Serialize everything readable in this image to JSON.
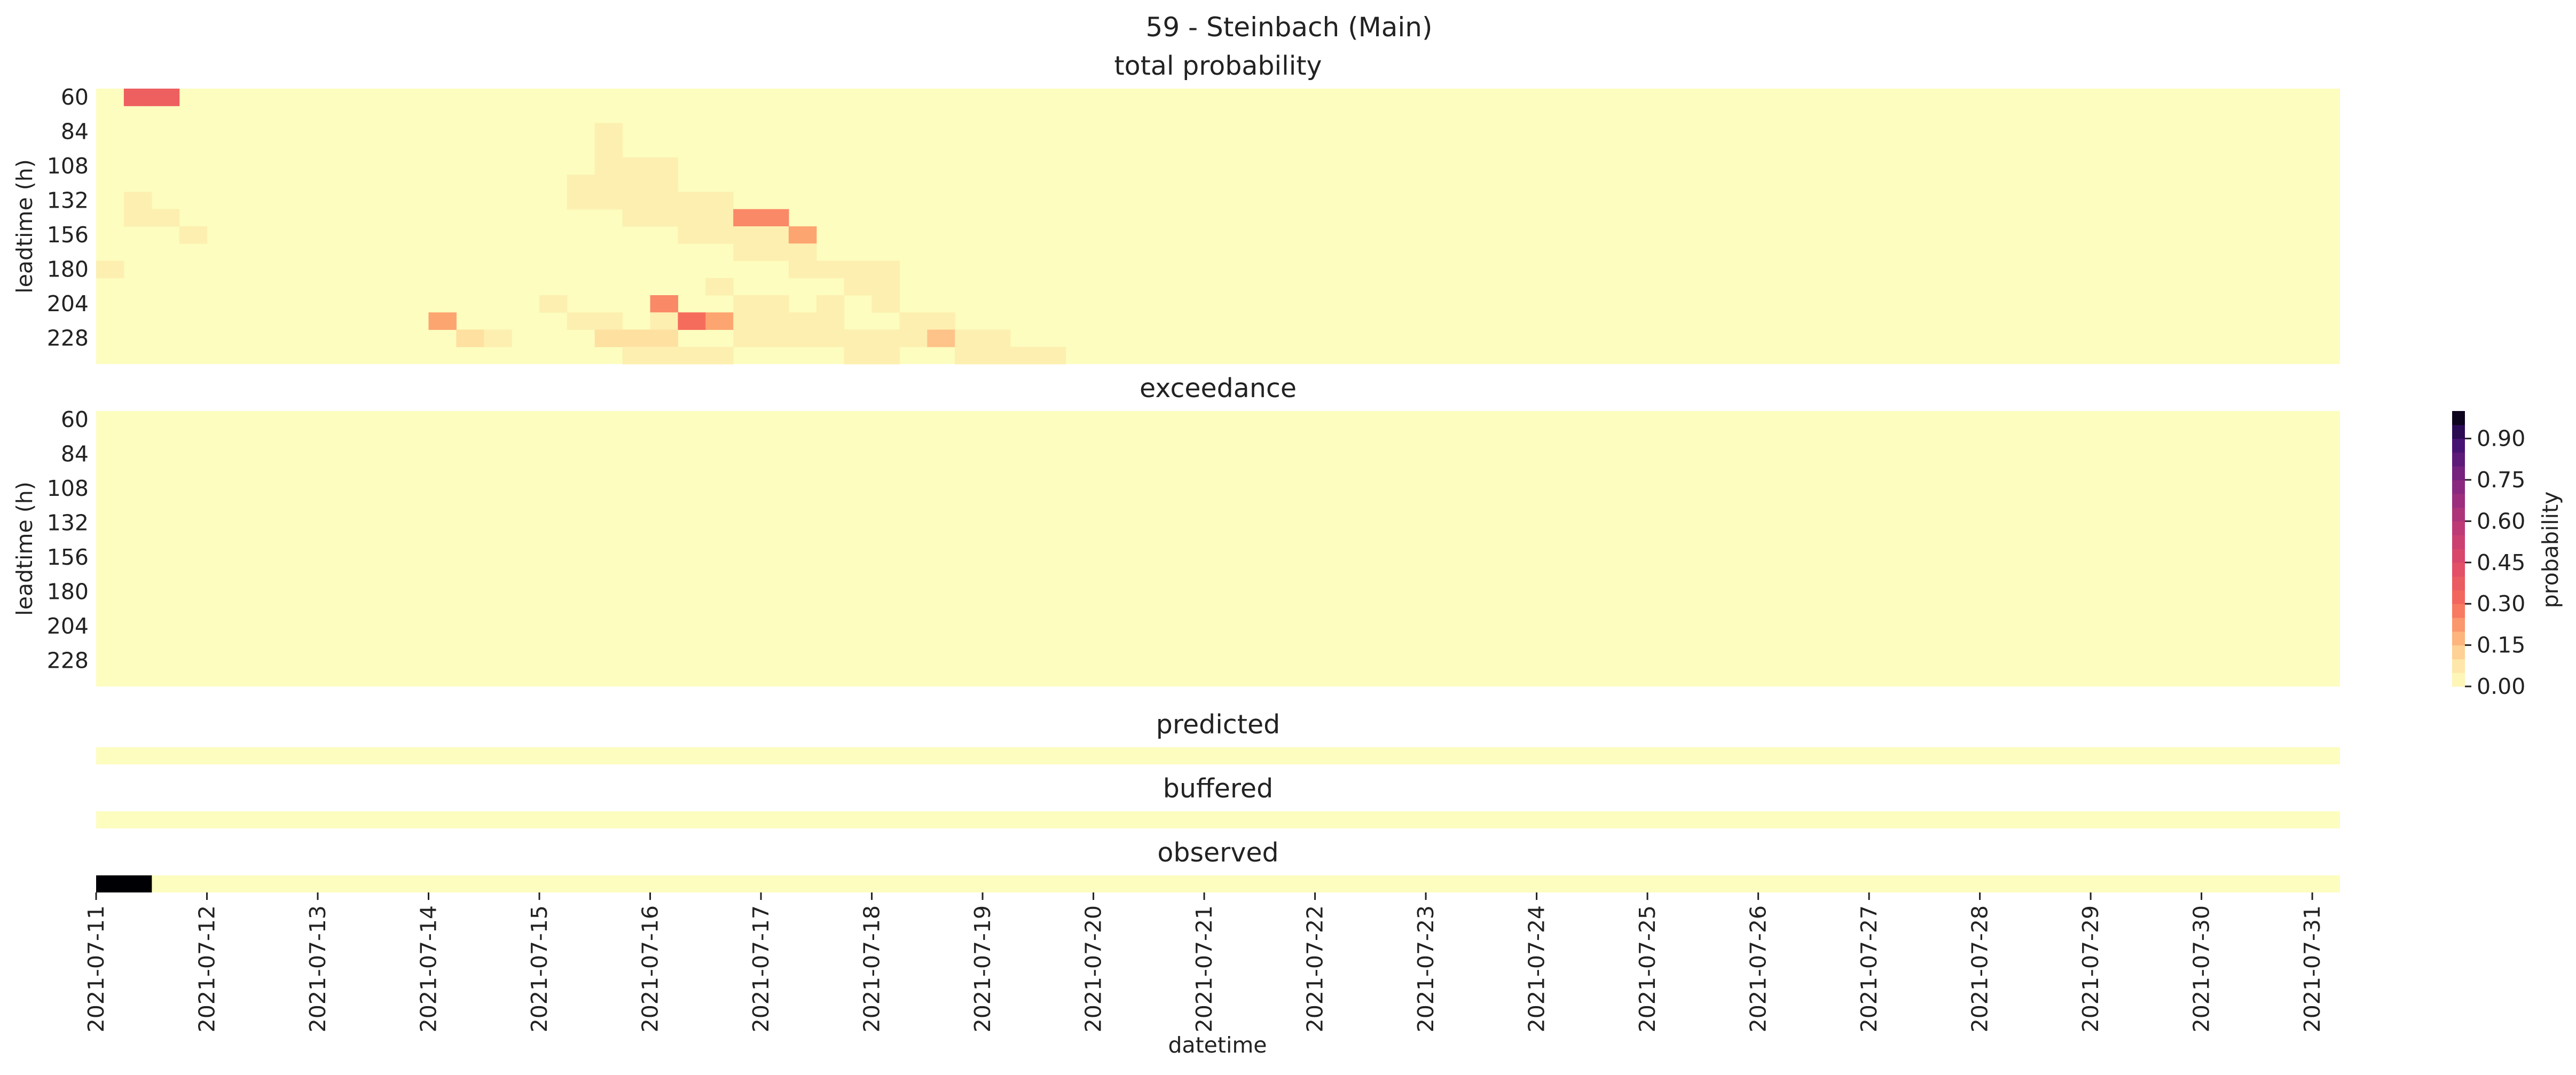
{
  "chart_data": {
    "type": "heatmap",
    "title": "59 - Steinbach (Main)",
    "xlabel": "datetime",
    "colormap": "magma_r",
    "background_color": "#fcfdbf",
    "colorbar": {
      "label": "probability",
      "range": [
        0,
        1
      ],
      "ticks": [
        "0.00",
        "0.15",
        "0.30",
        "0.45",
        "0.60",
        "0.75",
        "0.90"
      ],
      "levels": 20
    },
    "x_ticks": [
      "2021-07-11",
      "2021-07-12",
      "2021-07-13",
      "2021-07-14",
      "2021-07-15",
      "2021-07-16",
      "2021-07-17",
      "2021-07-18",
      "2021-07-19",
      "2021-07-20",
      "2021-07-21",
      "2021-07-22",
      "2021-07-23",
      "2021-07-24",
      "2021-07-25",
      "2021-07-26",
      "2021-07-27",
      "2021-07-28",
      "2021-07-29",
      "2021-07-30",
      "2021-07-31"
    ],
    "x_start": "2021-07-11 00:00",
    "time_step_hours": 6,
    "n_columns": 81,
    "leadtime_ticks": [
      "60",
      "84",
      "108",
      "132",
      "156",
      "180",
      "204",
      "228"
    ],
    "panels": [
      {
        "title": "total probability",
        "ylabel": "leadtime (h)",
        "leadtimes_h": [
          60,
          72,
          84,
          96,
          108,
          120,
          132,
          144,
          156,
          168,
          180,
          192,
          204,
          216,
          228,
          240
        ],
        "cells": [
          {
            "leadtime": 60,
            "col": 1,
            "value": 0.35
          },
          {
            "leadtime": 60,
            "col": 2,
            "value": 0.35
          },
          {
            "leadtime": 84,
            "col": 18,
            "value": 0.05
          },
          {
            "leadtime": 96,
            "col": 18,
            "value": 0.05
          },
          {
            "leadtime": 108,
            "col": 18,
            "value": 0.05
          },
          {
            "leadtime": 108,
            "col": 19,
            "value": 0.05
          },
          {
            "leadtime": 108,
            "col": 20,
            "value": 0.05
          },
          {
            "leadtime": 120,
            "col": 17,
            "value": 0.05
          },
          {
            "leadtime": 120,
            "col": 18,
            "value": 0.05
          },
          {
            "leadtime": 120,
            "col": 19,
            "value": 0.05
          },
          {
            "leadtime": 120,
            "col": 20,
            "value": 0.05
          },
          {
            "leadtime": 132,
            "col": 1,
            "value": 0.05
          },
          {
            "leadtime": 132,
            "col": 17,
            "value": 0.05
          },
          {
            "leadtime": 132,
            "col": 18,
            "value": 0.05
          },
          {
            "leadtime": 132,
            "col": 19,
            "value": 0.05
          },
          {
            "leadtime": 132,
            "col": 20,
            "value": 0.05
          },
          {
            "leadtime": 132,
            "col": 21,
            "value": 0.05
          },
          {
            "leadtime": 132,
            "col": 22,
            "value": 0.05
          },
          {
            "leadtime": 144,
            "col": 1,
            "value": 0.05
          },
          {
            "leadtime": 144,
            "col": 2,
            "value": 0.05
          },
          {
            "leadtime": 144,
            "col": 19,
            "value": 0.05
          },
          {
            "leadtime": 144,
            "col": 20,
            "value": 0.05
          },
          {
            "leadtime": 144,
            "col": 21,
            "value": 0.05
          },
          {
            "leadtime": 144,
            "col": 22,
            "value": 0.05
          },
          {
            "leadtime": 144,
            "col": 23,
            "value": 0.25
          },
          {
            "leadtime": 144,
            "col": 24,
            "value": 0.25
          },
          {
            "leadtime": 156,
            "col": 3,
            "value": 0.05
          },
          {
            "leadtime": 156,
            "col": 21,
            "value": 0.05
          },
          {
            "leadtime": 156,
            "col": 22,
            "value": 0.05
          },
          {
            "leadtime": 156,
            "col": 23,
            "value": 0.05
          },
          {
            "leadtime": 156,
            "col": 24,
            "value": 0.05
          },
          {
            "leadtime": 156,
            "col": 25,
            "value": 0.2
          },
          {
            "leadtime": 168,
            "col": 23,
            "value": 0.05
          },
          {
            "leadtime": 168,
            "col": 24,
            "value": 0.05
          },
          {
            "leadtime": 168,
            "col": 25,
            "value": 0.05
          },
          {
            "leadtime": 180,
            "col": 0,
            "value": 0.05
          },
          {
            "leadtime": 180,
            "col": 25,
            "value": 0.05
          },
          {
            "leadtime": 180,
            "col": 26,
            "value": 0.05
          },
          {
            "leadtime": 180,
            "col": 27,
            "value": 0.05
          },
          {
            "leadtime": 180,
            "col": 28,
            "value": 0.05
          },
          {
            "leadtime": 192,
            "col": 22,
            "value": 0.05
          },
          {
            "leadtime": 192,
            "col": 27,
            "value": 0.05
          },
          {
            "leadtime": 192,
            "col": 28,
            "value": 0.05
          },
          {
            "leadtime": 204,
            "col": 16,
            "value": 0.05
          },
          {
            "leadtime": 204,
            "col": 20,
            "value": 0.25
          },
          {
            "leadtime": 204,
            "col": 23,
            "value": 0.05
          },
          {
            "leadtime": 204,
            "col": 24,
            "value": 0.05
          },
          {
            "leadtime": 204,
            "col": 26,
            "value": 0.05
          },
          {
            "leadtime": 204,
            "col": 28,
            "value": 0.05
          },
          {
            "leadtime": 216,
            "col": 12,
            "value": 0.2
          },
          {
            "leadtime": 216,
            "col": 17,
            "value": 0.05
          },
          {
            "leadtime": 216,
            "col": 18,
            "value": 0.05
          },
          {
            "leadtime": 216,
            "col": 20,
            "value": 0.05
          },
          {
            "leadtime": 216,
            "col": 21,
            "value": 0.3
          },
          {
            "leadtime": 216,
            "col": 22,
            "value": 0.2
          },
          {
            "leadtime": 216,
            "col": 23,
            "value": 0.05
          },
          {
            "leadtime": 216,
            "col": 24,
            "value": 0.05
          },
          {
            "leadtime": 216,
            "col": 25,
            "value": 0.05
          },
          {
            "leadtime": 216,
            "col": 26,
            "value": 0.05
          },
          {
            "leadtime": 216,
            "col": 29,
            "value": 0.05
          },
          {
            "leadtime": 216,
            "col": 30,
            "value": 0.05
          },
          {
            "leadtime": 228,
            "col": 13,
            "value": 0.1
          },
          {
            "leadtime": 228,
            "col": 14,
            "value": 0.05
          },
          {
            "leadtime": 228,
            "col": 18,
            "value": 0.1
          },
          {
            "leadtime": 228,
            "col": 19,
            "value": 0.1
          },
          {
            "leadtime": 228,
            "col": 20,
            "value": 0.1
          },
          {
            "leadtime": 228,
            "col": 23,
            "value": 0.05
          },
          {
            "leadtime": 228,
            "col": 24,
            "value": 0.05
          },
          {
            "leadtime": 228,
            "col": 25,
            "value": 0.05
          },
          {
            "leadtime": 228,
            "col": 26,
            "value": 0.05
          },
          {
            "leadtime": 228,
            "col": 27,
            "value": 0.05
          },
          {
            "leadtime": 228,
            "col": 28,
            "value": 0.05
          },
          {
            "leadtime": 228,
            "col": 29,
            "value": 0.05
          },
          {
            "leadtime": 228,
            "col": 30,
            "value": 0.15
          },
          {
            "leadtime": 228,
            "col": 31,
            "value": 0.05
          },
          {
            "leadtime": 228,
            "col": 32,
            "value": 0.05
          },
          {
            "leadtime": 240,
            "col": 19,
            "value": 0.05
          },
          {
            "leadtime": 240,
            "col": 20,
            "value": 0.05
          },
          {
            "leadtime": 240,
            "col": 21,
            "value": 0.05
          },
          {
            "leadtime": 240,
            "col": 22,
            "value": 0.05
          },
          {
            "leadtime": 240,
            "col": 27,
            "value": 0.05
          },
          {
            "leadtime": 240,
            "col": 28,
            "value": 0.05
          },
          {
            "leadtime": 240,
            "col": 31,
            "value": 0.05
          },
          {
            "leadtime": 240,
            "col": 32,
            "value": 0.05
          },
          {
            "leadtime": 240,
            "col": 33,
            "value": 0.05
          },
          {
            "leadtime": 240,
            "col": 34,
            "value": 0.05
          }
        ]
      },
      {
        "title": "exceedance",
        "ylabel": "leadtime (h)",
        "leadtimes_h": [
          60,
          72,
          84,
          96,
          108,
          120,
          132,
          144,
          156,
          168,
          180,
          192,
          204,
          216,
          228,
          240
        ],
        "cells": []
      },
      {
        "title": "predicted",
        "values": []
      },
      {
        "title": "buffered",
        "values": []
      },
      {
        "title": "observed",
        "values": [
          {
            "col": 0,
            "value": 1.0
          },
          {
            "col": 1,
            "value": 1.0
          }
        ]
      }
    ]
  }
}
